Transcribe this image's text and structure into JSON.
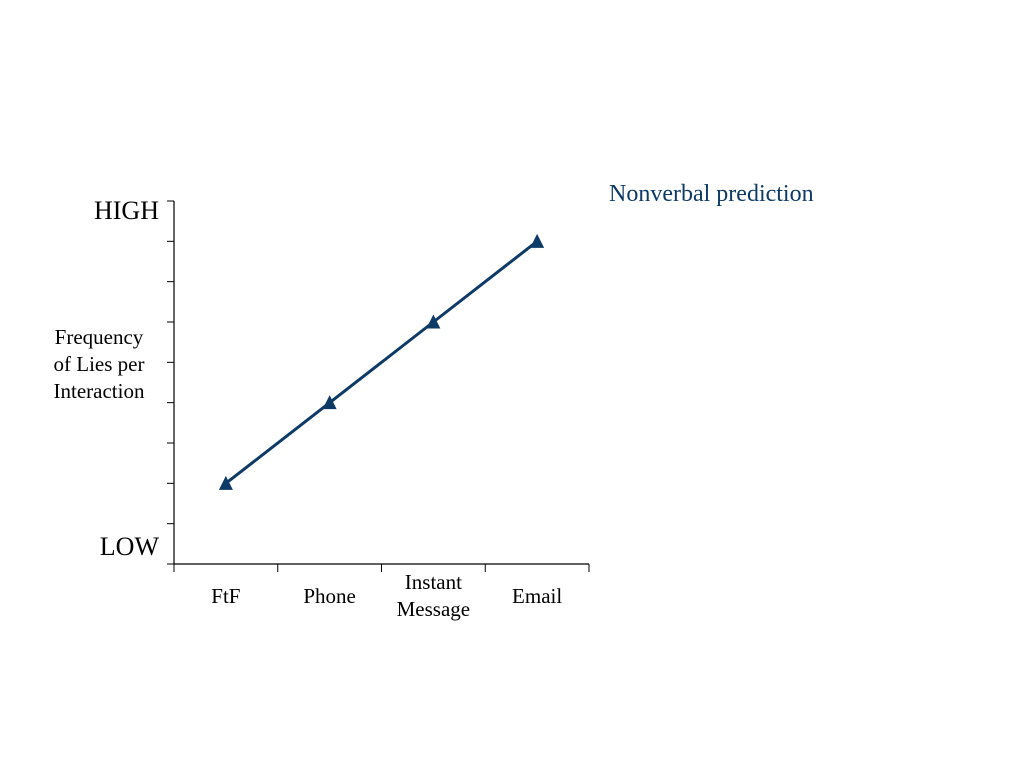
{
  "chart_data": {
    "type": "line",
    "categories": [
      "FtF",
      "Phone",
      "Instant Message",
      "Email"
    ],
    "category_lines": [
      [
        "FtF"
      ],
      [
        "Phone"
      ],
      [
        "Instant",
        "Message"
      ],
      [
        "Email"
      ]
    ],
    "series": [
      {
        "name": "Nonverbal prediction",
        "values": [
          2,
          4,
          6,
          8
        ],
        "marker": "triangle"
      }
    ],
    "ylim": [
      0,
      9
    ],
    "y_tick_count": 10,
    "ylabel_lines": [
      "Frequency",
      "of Lies per",
      "Interaction"
    ],
    "y_high_label": "HIGH",
    "y_low_label": "LOW",
    "legend": {
      "label": "Nonverbal prediction",
      "placement": "top-right"
    },
    "grid": false,
    "colors": {
      "series": "#0d3a66",
      "axis": "#000000"
    }
  }
}
